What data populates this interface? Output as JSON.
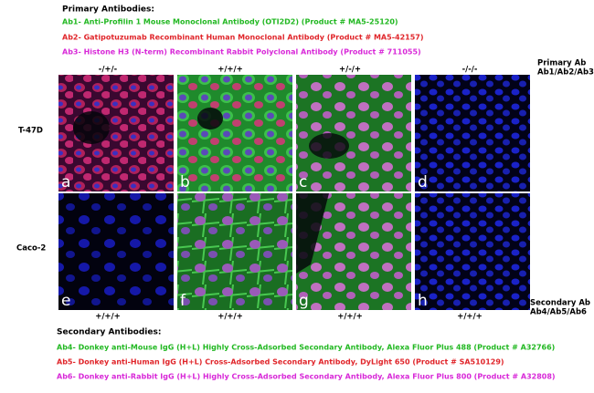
{
  "header": {
    "title": "Primary Antibodies:",
    "lines": [
      "Ab1- Anti-Profilin 1 Mouse Monoclonal Antibody (OTI2D2) (Product # MA5-25120)",
      "Ab2- Gatipotuzumab Recombinant Human Monoclonal Antibody (Product # MA5-42157)",
      "Ab3- Histone H3 (N-term) Recombinant Rabbit Polyclonal Antibody (Product # 711055)"
    ]
  },
  "columns_top": [
    "-/+/-",
    "+/+/+",
    "+/-/+",
    "-/-/-"
  ],
  "primary_label": [
    "Primary Ab",
    "Ab1/Ab2/Ab3"
  ],
  "rows": [
    "T-47D",
    "Caco-2"
  ],
  "panels": [
    "a",
    "b",
    "c",
    "d",
    "e",
    "f",
    "g",
    "h"
  ],
  "columns_bottom": [
    "+/+/+",
    "+/+/+",
    "+/+/+",
    "+/+/+"
  ],
  "secondary_label": [
    "Secondary Ab",
    "Ab4/Ab5/Ab6"
  ],
  "footer": {
    "title": "Secondary Antibodies:",
    "lines": [
      "Ab4- Donkey anti-Mouse IgG (H+L) Highly Cross-Adsorbed Secondary Antibody, Alexa Fluor Plus 488 (Product # A32766)",
      "Ab5- Donkey anti-Human IgG (H+L) Cross-Adsorbed Secondary Antibody, DyLight 650 (Product # SA510129)",
      "Ab6- Donkey anti-Rabbit IgG (H+L) Highly Cross-Adsorbed Secondary Antibody, Alexa Fluor Plus 800 (Product # A32808)"
    ]
  }
}
